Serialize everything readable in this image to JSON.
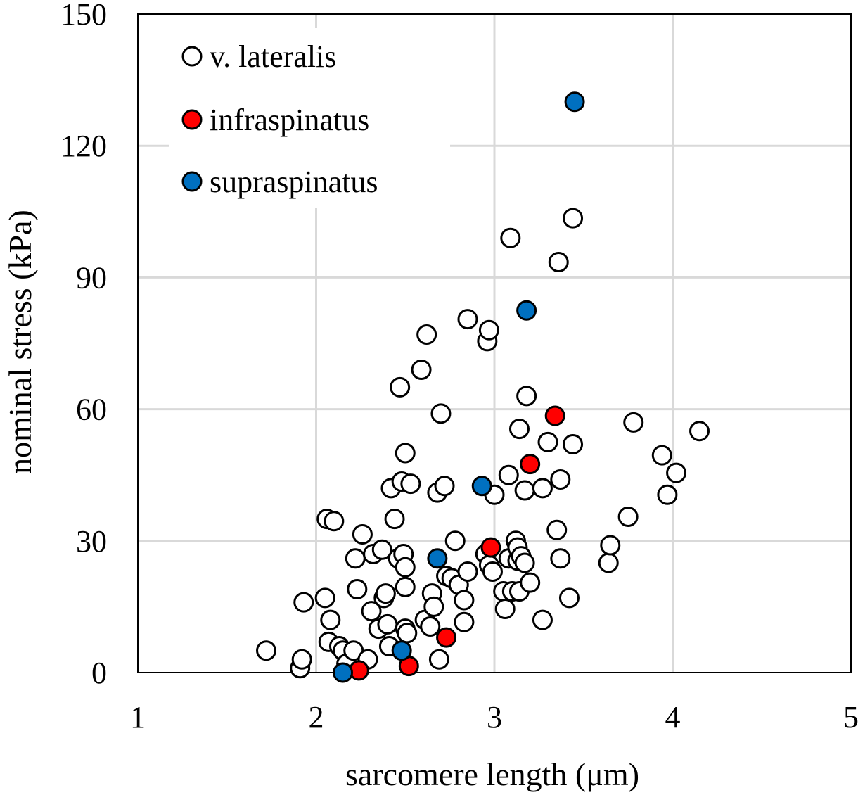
{
  "chart_data": {
    "type": "scatter",
    "xlabel": "sarcomere length (μm)",
    "ylabel": "nominal stress (kPa)",
    "xlim": [
      1,
      5
    ],
    "ylim": [
      0,
      150
    ],
    "xticks": [
      1,
      2,
      3,
      4,
      5
    ],
    "yticks": [
      0,
      30,
      60,
      90,
      120,
      150
    ],
    "xtick_labels": [
      "1",
      "2",
      "3",
      "4",
      "5"
    ],
    "ytick_labels": [
      "0",
      "30",
      "60",
      "90",
      "120",
      "150"
    ],
    "grid": true,
    "legend_position": "top-left",
    "series": [
      {
        "name": "v. lateralis",
        "fill": "#ffffff",
        "points": [
          [
            1.72,
            5
          ],
          [
            1.91,
            1
          ],
          [
            1.92,
            3
          ],
          [
            1.93,
            16
          ],
          [
            2.05,
            17
          ],
          [
            2.06,
            35
          ],
          [
            2.07,
            7
          ],
          [
            2.08,
            12
          ],
          [
            2.1,
            34.5
          ],
          [
            2.13,
            6
          ],
          [
            2.15,
            5
          ],
          [
            2.17,
            2
          ],
          [
            2.21,
            5
          ],
          [
            2.22,
            26
          ],
          [
            2.23,
            19
          ],
          [
            2.26,
            31.5
          ],
          [
            2.29,
            3
          ],
          [
            2.31,
            14
          ],
          [
            2.32,
            27
          ],
          [
            2.35,
            10
          ],
          [
            2.37,
            28
          ],
          [
            2.38,
            17
          ],
          [
            2.39,
            18
          ],
          [
            2.4,
            11
          ],
          [
            2.41,
            6
          ],
          [
            2.42,
            42
          ],
          [
            2.44,
            35
          ],
          [
            2.46,
            26
          ],
          [
            2.47,
            65
          ],
          [
            2.48,
            43.5
          ],
          [
            2.49,
            27
          ],
          [
            2.5,
            24
          ],
          [
            2.5,
            50
          ],
          [
            2.5,
            19.5
          ],
          [
            2.5,
            10
          ],
          [
            2.51,
            9
          ],
          [
            2.53,
            43
          ],
          [
            2.59,
            69
          ],
          [
            2.61,
            12
          ],
          [
            2.62,
            77
          ],
          [
            2.64,
            10.5
          ],
          [
            2.65,
            18
          ],
          [
            2.66,
            15
          ],
          [
            2.68,
            41
          ],
          [
            2.69,
            3
          ],
          [
            2.7,
            59
          ],
          [
            2.72,
            42.5
          ],
          [
            2.73,
            22
          ],
          [
            2.76,
            21.5
          ],
          [
            2.78,
            30
          ],
          [
            2.8,
            20
          ],
          [
            2.83,
            11.5
          ],
          [
            2.83,
            16.5
          ],
          [
            2.85,
            80.5
          ],
          [
            2.85,
            23
          ],
          [
            2.95,
            27
          ],
          [
            2.96,
            75.5
          ],
          [
            2.97,
            78
          ],
          [
            2.97,
            24.5
          ],
          [
            2.99,
            23
          ],
          [
            3.0,
            40.5
          ],
          [
            3.05,
            18.5
          ],
          [
            3.06,
            14.5
          ],
          [
            3.08,
            26
          ],
          [
            3.08,
            45
          ],
          [
            3.09,
            99
          ],
          [
            3.1,
            18.5
          ],
          [
            3.12,
            30
          ],
          [
            3.13,
            25.5
          ],
          [
            3.13,
            28.5
          ],
          [
            3.14,
            18.5
          ],
          [
            3.14,
            55.5
          ],
          [
            3.15,
            26.5
          ],
          [
            3.17,
            41.5
          ],
          [
            3.17,
            25
          ],
          [
            3.18,
            63
          ],
          [
            3.2,
            20.5
          ],
          [
            3.27,
            42
          ],
          [
            3.27,
            12
          ],
          [
            3.3,
            52.5
          ],
          [
            3.35,
            32.5
          ],
          [
            3.36,
            93.5
          ],
          [
            3.37,
            44
          ],
          [
            3.37,
            26
          ],
          [
            3.42,
            17
          ],
          [
            3.44,
            103.5
          ],
          [
            3.44,
            52
          ],
          [
            3.64,
            25
          ],
          [
            3.65,
            29
          ],
          [
            3.75,
            35.5
          ],
          [
            3.78,
            57
          ],
          [
            3.94,
            49.5
          ],
          [
            3.97,
            40.5
          ],
          [
            4.02,
            45.5
          ],
          [
            4.15,
            55
          ]
        ]
      },
      {
        "name": "infraspinatus",
        "fill": "#ff0000",
        "points": [
          [
            2.24,
            0.5
          ],
          [
            2.52,
            1.5
          ],
          [
            2.73,
            8
          ],
          [
            2.98,
            28.5
          ],
          [
            3.2,
            47.5
          ],
          [
            3.34,
            58.5
          ]
        ]
      },
      {
        "name": "supraspinatus",
        "fill": "#0070c0",
        "points": [
          [
            2.15,
            0
          ],
          [
            2.48,
            5
          ],
          [
            2.68,
            26
          ],
          [
            2.93,
            42.5
          ],
          [
            3.18,
            82.5
          ],
          [
            3.45,
            130
          ]
        ]
      }
    ]
  }
}
